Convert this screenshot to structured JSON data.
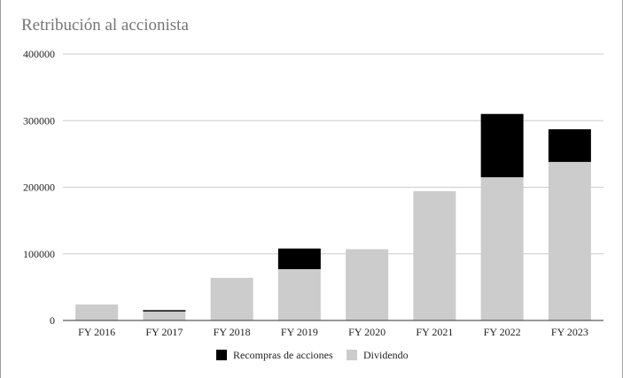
{
  "chart_data": {
    "type": "bar",
    "stacked": true,
    "title": "Retribución al accionista",
    "xlabel": "",
    "ylabel": "",
    "categories": [
      "FY 2016",
      "FY 2017",
      "FY 2018",
      "FY 2019",
      "FY 2020",
      "FY 2021",
      "FY 2022",
      "FY 2023"
    ],
    "series": [
      {
        "name": "Dividendo",
        "color": "#cccccc",
        "values": [
          24000,
          13500,
          64000,
          77000,
          107000,
          194000,
          215000,
          238000
        ]
      },
      {
        "name": "Recompras de acciones",
        "color": "#000000",
        "values": [
          0,
          2000,
          0,
          31000,
          0,
          0,
          95000,
          49000
        ]
      }
    ],
    "ylim": [
      0,
      400000
    ],
    "yticks": [
      "400000",
      "300000",
      "200000",
      "100000",
      "0"
    ],
    "grid": true,
    "legend_position": "bottom"
  }
}
